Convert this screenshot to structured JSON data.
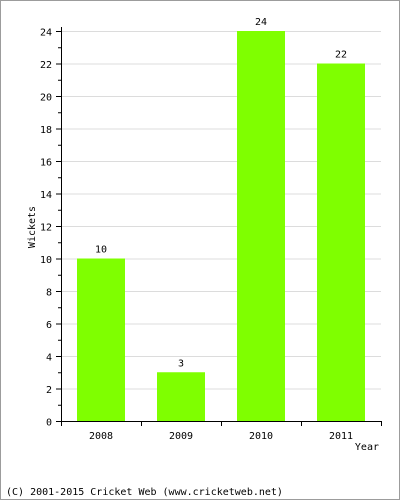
{
  "chart_data": {
    "type": "bar",
    "categories": [
      "2008",
      "2009",
      "2010",
      "2011"
    ],
    "values": [
      10,
      3,
      24,
      22
    ],
    "data_labels": [
      "10",
      "3",
      "24",
      "22"
    ],
    "xlabel": "Year",
    "ylabel": "Wickets",
    "ylim": [
      0,
      24
    ],
    "yticks": [
      0,
      2,
      4,
      6,
      8,
      10,
      12,
      14,
      16,
      18,
      20,
      22,
      24
    ],
    "grid": true,
    "bar_color": "#7fff00",
    "grid_color": "#dcdcdc"
  },
  "footer": {
    "copyright": "(C) 2001-2015 Cricket Web (www.cricketweb.net)"
  }
}
